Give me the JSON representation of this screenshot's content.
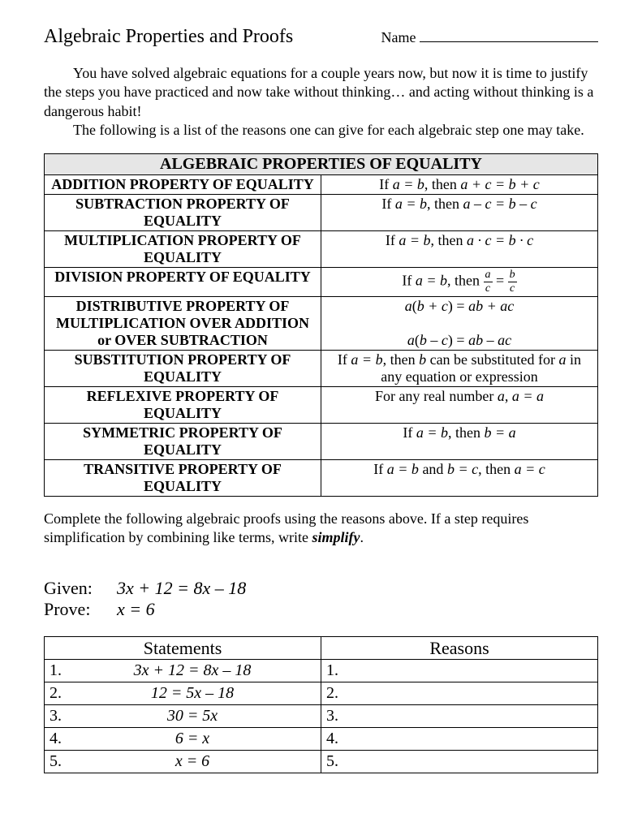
{
  "title": "Algebraic Properties and Proofs",
  "name_label": "Name",
  "intro": {
    "p1": "You have solved algebraic equations for a couple years now, but now it is time to justify the steps you have practiced and now take without thinking… and acting without thinking is a dangerous habit!",
    "p2": "The following is a list of the reasons one can give for each algebraic step one may take."
  },
  "table_heading": "ALGEBRAIC PROPERTIES OF EQUALITY",
  "properties": [
    {
      "name": "ADDITION PROPERTY OF EQUALITY",
      "rule_html": "If <span class='ital'>a = b</span>, then <span class='ital'>a + c = b + c</span>"
    },
    {
      "name": "SUBTRACTION PROPERTY OF EQUALITY",
      "rule_html": "If <span class='ital'>a = b</span>, then <span class='ital'>a – c = b – c</span>"
    },
    {
      "name": "MULTIPLICATION PROPERTY OF EQUALITY",
      "rule_html": "If <span class='ital'>a = b</span>, then <span class='ital'>a · c = b · c</span>"
    },
    {
      "name": "DIVISION PROPERTY OF EQUALITY",
      "rule_html": "If <span class='ital'>a = b</span>, then <span class='frac'><span class='top'>a</span><span class='bot'>c</span></span> = <span class='frac'><span class='top'>b</span><span class='bot'>c</span></span>"
    },
    {
      "name": "DISTRIBUTIVE PROPERTY OF MULTIPLICATION OVER ADDITION or OVER SUBTRACTION",
      "rule_html": "<span class='ital'>a</span>(<span class='ital'>b + c</span>) = <span class='ital'>ab + ac</span><br><br><span class='ital'>a</span>(<span class='ital'>b – c</span>) = <span class='ital'>ab – ac</span>"
    },
    {
      "name": "SUBSTITUTION PROPERTY OF EQUALITY",
      "rule_html": "If <span class='ital'>a = b</span>, then <span class='ital'>b</span> can be substituted for <span class='ital'>a</span> in any equation or expression"
    },
    {
      "name": "REFLEXIVE PROPERTY OF EQUALITY",
      "rule_html": "For any real number <span class='ital'>a</span>, <span class='ital'>a = a</span>"
    },
    {
      "name": "SYMMETRIC PROPERTY OF EQUALITY",
      "rule_html": "If <span class='ital'>a = b</span>, then <span class='ital'>b = a</span>"
    },
    {
      "name": "TRANSITIVE PROPERTY OF EQUALITY",
      "rule_html": "If <span class='ital'>a = b</span> and <span class='ital'>b = c</span>, then <span class='ital'>a = c</span>"
    }
  ],
  "instructions_html": "Complete the following algebraic proofs using the reasons above.  If a step requires simplification by combining like terms, write <span class='ital'><b>simplify</b></span>.",
  "given_label": "Given:",
  "prove_label": "Prove:",
  "given_math": "3x + 12 = 8x – 18",
  "prove_math": "x = 6",
  "proof_headers": {
    "statements": "Statements",
    "reasons": "Reasons"
  },
  "proof_rows": [
    {
      "num": "1.",
      "statement": "3x + 12 = 8x – 18",
      "reason_num": "1."
    },
    {
      "num": "2.",
      "statement": "12 = 5x – 18",
      "reason_num": "2."
    },
    {
      "num": "3.",
      "statement": "30 = 5x",
      "reason_num": "3."
    },
    {
      "num": "4.",
      "statement": "6 = x",
      "reason_num": "4."
    },
    {
      "num": "5.",
      "statement": "x = 6",
      "reason_num": "5."
    }
  ]
}
